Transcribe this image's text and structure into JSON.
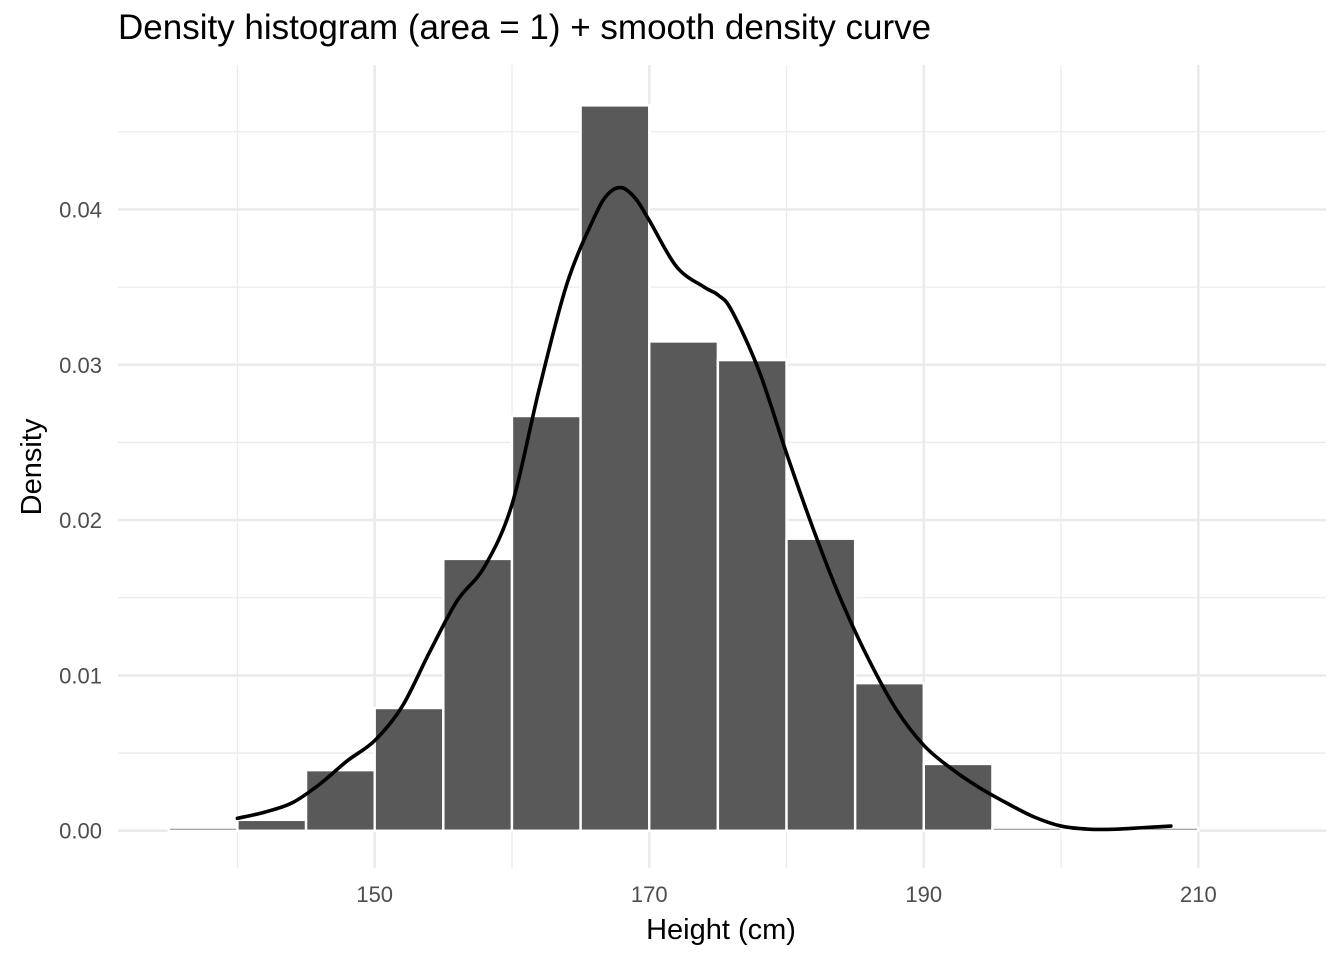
{
  "chart_data": {
    "type": "bar",
    "title": "Density histogram (area = 1) + smooth density curve",
    "xlabel": "Height (cm)",
    "ylabel": "Density",
    "xlim": [
      131.3,
      219.3
    ],
    "ylim": [
      -0.0024,
      0.0493
    ],
    "x_ticks": [
      150,
      170,
      190,
      210
    ],
    "x_minor_ticks": [
      140,
      160,
      180,
      200
    ],
    "y_ticks": [
      0.0,
      0.01,
      0.02,
      0.03,
      0.04
    ],
    "y_tick_labels": [
      "0.00",
      "0.01",
      "0.02",
      "0.03",
      "0.04"
    ],
    "y_minor_ticks": [
      0.005,
      0.015,
      0.025,
      0.035,
      0.045
    ],
    "grid": true,
    "bar_color": "#595959",
    "bar_outline": "#ffffff",
    "curve_color": "#000000",
    "panel_background": "#ffffff",
    "grid_color": "#ebebeb",
    "bins": [
      {
        "x_start": 135,
        "x_end": 140,
        "density": 0.0002
      },
      {
        "x_start": 140,
        "x_end": 145,
        "density": 0.0007
      },
      {
        "x_start": 145,
        "x_end": 150,
        "density": 0.0039
      },
      {
        "x_start": 150,
        "x_end": 155,
        "density": 0.0079
      },
      {
        "x_start": 155,
        "x_end": 160,
        "density": 0.0175
      },
      {
        "x_start": 160,
        "x_end": 165,
        "density": 0.0267
      },
      {
        "x_start": 165,
        "x_end": 170,
        "density": 0.0467
      },
      {
        "x_start": 170,
        "x_end": 175,
        "density": 0.0315
      },
      {
        "x_start": 175,
        "x_end": 180,
        "density": 0.0303
      },
      {
        "x_start": 180,
        "x_end": 185,
        "density": 0.0188
      },
      {
        "x_start": 185,
        "x_end": 190,
        "density": 0.0095
      },
      {
        "x_start": 190,
        "x_end": 195,
        "density": 0.0043
      },
      {
        "x_start": 195,
        "x_end": 200,
        "density": 0.0002
      },
      {
        "x_start": 200,
        "x_end": 205,
        "density": 0.0
      },
      {
        "x_start": 205,
        "x_end": 210,
        "density": 0.0002
      }
    ],
    "density_curve": {
      "x": [
        140,
        142,
        144,
        146,
        148,
        150,
        152,
        154,
        156,
        158,
        160,
        162,
        164,
        166,
        167,
        168,
        169,
        170,
        172,
        174,
        175,
        176,
        178,
        180,
        182,
        184,
        186,
        188,
        190,
        192,
        194,
        196,
        198,
        200,
        202,
        204,
        206,
        208
      ],
      "y": [
        0.0008,
        0.0012,
        0.0018,
        0.003,
        0.0045,
        0.0058,
        0.008,
        0.0115,
        0.0148,
        0.017,
        0.021,
        0.0285,
        0.0352,
        0.0395,
        0.041,
        0.0414,
        0.0407,
        0.0393,
        0.0363,
        0.035,
        0.0345,
        0.0335,
        0.0296,
        0.0243,
        0.0193,
        0.0148,
        0.011,
        0.0078,
        0.0055,
        0.004,
        0.0028,
        0.0018,
        0.0009,
        0.0003,
        0.0001,
        0.0001,
        0.0002,
        0.0003
      ]
    }
  }
}
